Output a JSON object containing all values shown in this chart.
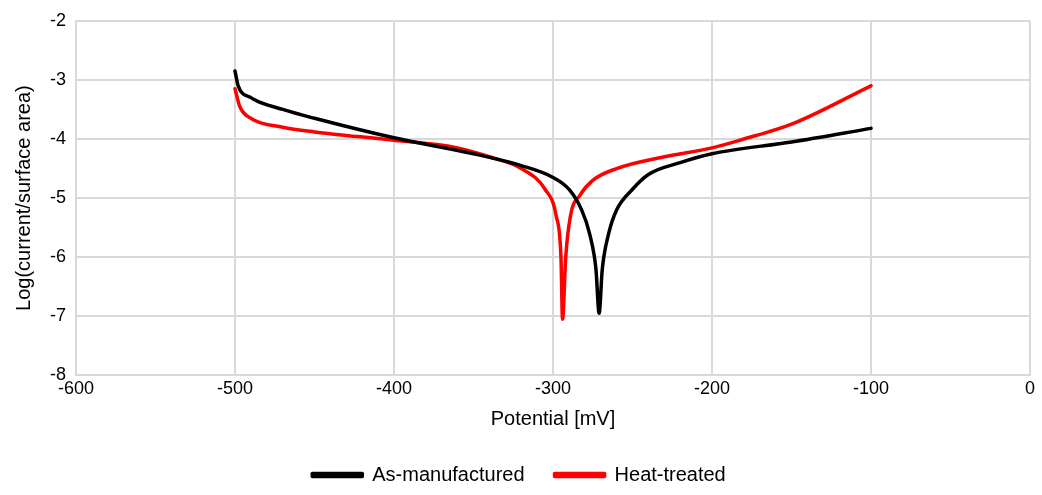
{
  "chart_data": {
    "type": "line",
    "xlabel": "Potential [mV]",
    "ylabel": "Log(current/surface area)",
    "xlim": [
      -600,
      0
    ],
    "xticks": [
      -600,
      -500,
      -400,
      -300,
      -200,
      -100,
      0
    ],
    "ylim": [
      -8,
      -2
    ],
    "yticks": [
      -8,
      -7,
      -6,
      -5,
      -4,
      -3,
      -2
    ],
    "grid": true,
    "legend": "bottom",
    "marker": "none",
    "series": [
      {
        "name": "As-manufactured",
        "color": "#000000",
        "x": [
          -500,
          -498,
          -490,
          -470,
          -450,
          -400,
          -350,
          -320,
          -300,
          -290,
          -282,
          -277,
          -273,
          -271,
          -269,
          -265,
          -260,
          -250,
          -240,
          -220,
          -200,
          -150,
          -100
        ],
        "values": [
          -2.85,
          -3.1,
          -3.3,
          -3.5,
          -3.65,
          -3.98,
          -4.25,
          -4.45,
          -4.65,
          -4.85,
          -5.2,
          -5.6,
          -6.2,
          -6.95,
          -6.2,
          -5.6,
          -5.2,
          -4.85,
          -4.6,
          -4.4,
          -4.25,
          -4.05,
          -3.82
        ]
      },
      {
        "name": "Heat-treated",
        "color": "#ff0000",
        "x": [
          -500,
          -497,
          -490,
          -470,
          -450,
          -400,
          -360,
          -340,
          -320,
          -305,
          -298,
          -295,
          -294,
          -292,
          -289,
          -283,
          -275,
          -260,
          -230,
          -200,
          -180,
          -150,
          -100
        ],
        "values": [
          -3.15,
          -3.45,
          -3.65,
          -3.8,
          -3.88,
          -4.02,
          -4.15,
          -4.3,
          -4.5,
          -4.85,
          -5.3,
          -6,
          -7.05,
          -6,
          -5.3,
          -4.95,
          -4.7,
          -4.5,
          -4.3,
          -4.15,
          -4.0,
          -3.75,
          -3.1
        ]
      }
    ]
  }
}
